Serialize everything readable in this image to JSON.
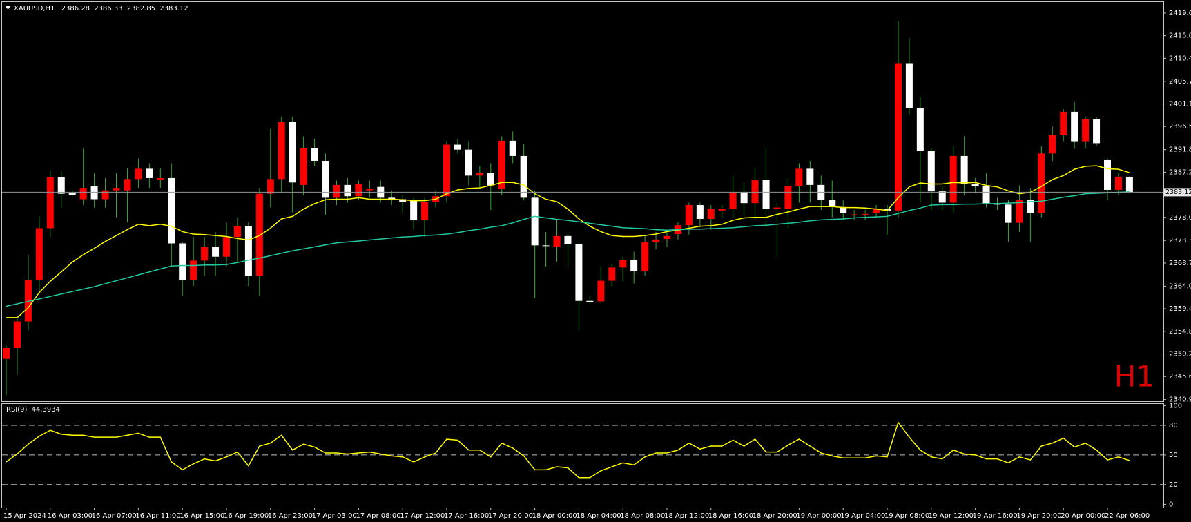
{
  "chart_data": [
    {
      "type": "candlestick",
      "title": "XAUUSD,H1",
      "watermark": "H1",
      "bull_color": "#ff0000",
      "bear_color": "#ffffff",
      "wick_color": "#2fae2f",
      "categories": [
        "15 Apr 2024",
        null,
        null,
        null,
        "16 Apr 03:00",
        null,
        null,
        null,
        "16 Apr 07:00",
        null,
        null,
        null,
        "16 Apr 11:00",
        null,
        null,
        null,
        "16 Apr 15:00",
        null,
        null,
        null,
        "16 Apr 19:00",
        null,
        null,
        null,
        "16 Apr 23:00",
        null,
        null,
        null,
        "17 Apr 03:00",
        null,
        null,
        null,
        "17 Apr 08:00",
        null,
        null,
        null,
        "17 Apr 12:00",
        null,
        null,
        null,
        "17 Apr 16:00",
        null,
        null,
        null,
        "17 Apr 20:00",
        null,
        null,
        null,
        "18 Apr 00:00",
        null,
        null,
        null,
        "18 Apr 04:00",
        null,
        null,
        null,
        "18 Apr 08:00",
        null,
        null,
        null,
        "18 Apr 12:00",
        null,
        null,
        null,
        "18 Apr 16:00",
        null,
        null,
        null,
        "18 Apr 20:00",
        null,
        null,
        null,
        "19 Apr 00:00",
        null,
        null,
        null,
        "19 Apr 04:00",
        null,
        null,
        null,
        "19 Apr 08:00",
        null,
        null,
        null,
        "19 Apr 12:00",
        null,
        null,
        null,
        "19 Apr 16:00",
        null,
        null,
        null,
        "19 Apr 20:00",
        null,
        null,
        null,
        "20 Apr 00:00",
        null,
        null,
        null,
        "22 Apr 06:00",
        null,
        null
      ],
      "open": [
        2349.2,
        2351.4,
        2356.8,
        2365.3,
        2375.8,
        2386.2,
        2382.9,
        2381.7,
        2384.3,
        2381.7,
        2383.5,
        2383.5,
        2385.8,
        2387.9,
        2385.7,
        2386.0,
        2372.7,
        2365.3,
        2369.2,
        2372.0,
        2370.0,
        2374.0,
        2376.2,
        2366.1,
        2382.8,
        2385.8,
        2397.5,
        2384.6,
        2392.1,
        2389.5,
        2382.0,
        2384.6,
        2382.3,
        2383.5,
        2384.2,
        2382.0,
        2381.7,
        2381.5,
        2377.4,
        2381.2,
        2382.3,
        2392.8,
        2391.8,
        2386.5,
        2387.1,
        2383.8,
        2393.6,
        2390.5,
        2382.0,
        2372.3,
        2372.0,
        2374.2,
        2372.6,
        2361.0,
        2360.9,
        2365.1,
        2367.8,
        2369.4,
        2367.0,
        2372.9,
        2373.6,
        2374.6,
        2376.4,
        2380.5,
        2377.7,
        2379.4,
        2379.7,
        2383.1,
        2380.9,
        2385.6,
        2379.7,
        2379.7,
        2384.3,
        2387.9,
        2384.6,
        2381.5,
        2380.1,
        2378.6,
        2378.6,
        2378.9,
        2379.7,
        2379.4,
        2409.4,
        2400.3,
        2391.5,
        2383.3,
        2381.0,
        2390.5,
        2384.8,
        2384.3,
        2380.9,
        2380.6,
        2376.9,
        2381.5,
        2378.9,
        2391.0,
        2394.7,
        2399.5,
        2393.5,
        2398.0,
        2389.7,
        2383.6,
        2386.28
      ],
      "high": [
        2351.9,
        2357.3,
        2370.4,
        2378.2,
        2387.4,
        2387.5,
        2383.5,
        2392.0,
        2387.0,
        2386.0,
        2387.0,
        2388.0,
        2390.0,
        2389.0,
        2388.0,
        2389.0,
        2373.0,
        2374.0,
        2374.0,
        2375.0,
        2377.0,
        2378.0,
        2377.0,
        2384.0,
        2396.0,
        2398.5,
        2398.5,
        2394.5,
        2394.0,
        2391.0,
        2385.5,
        2386.0,
        2385.5,
        2385.5,
        2385.5,
        2383.5,
        2382.5,
        2382.0,
        2382.0,
        2383.5,
        2393.5,
        2394.0,
        2393.5,
        2388.5,
        2389.0,
        2394.5,
        2395.5,
        2393.0,
        2383.5,
        2375.0,
        2377.5,
        2375.0,
        2373.0,
        2362.0,
        2368.0,
        2368.5,
        2370.0,
        2371.0,
        2374.5,
        2375.0,
        2375.5,
        2377.0,
        2381.0,
        2381.0,
        2380.5,
        2380.5,
        2386.5,
        2385.0,
        2388.0,
        2392.0,
        2381.0,
        2386.0,
        2389.0,
        2389.5,
        2386.5,
        2385.5,
        2381.5,
        2379.5,
        2379.5,
        2380.5,
        2380.5,
        2418.0,
        2414.5,
        2402.5,
        2392.0,
        2384.5,
        2392.5,
        2394.5,
        2386.0,
        2387.0,
        2382.0,
        2381.5,
        2384.5,
        2384.0,
        2392.5,
        2396.5,
        2400.0,
        2401.5,
        2398.5,
        2398.5,
        2390.0,
        2387.0,
        2386.33
      ],
      "low": [
        2341.8,
        2346.0,
        2355.0,
        2363.0,
        2374.0,
        2380.0,
        2382.0,
        2380.5,
        2380.0,
        2380.0,
        2378.0,
        2377.0,
        2384.0,
        2384.0,
        2384.0,
        2368.0,
        2362.0,
        2364.0,
        2366.0,
        2366.0,
        2368.0,
        2369.0,
        2364.0,
        2362.0,
        2380.0,
        2383.0,
        2379.0,
        2382.5,
        2388.5,
        2378.5,
        2380.5,
        2381.0,
        2381.5,
        2382.0,
        2381.0,
        2380.5,
        2379.0,
        2375.5,
        2374.0,
        2380.0,
        2381.0,
        2391.0,
        2384.5,
        2384.0,
        2379.5,
        2382.5,
        2389.0,
        2381.5,
        2361.5,
        2368.0,
        2369.0,
        2368.0,
        2355.0,
        2360.5,
        2360.5,
        2364.0,
        2365.0,
        2364.5,
        2366.0,
        2371.5,
        2372.0,
        2373.5,
        2374.5,
        2376.0,
        2375.5,
        2378.0,
        2378.0,
        2378.5,
        2377.5,
        2376.0,
        2370.0,
        2375.5,
        2381.0,
        2381.0,
        2379.5,
        2378.0,
        2377.5,
        2377.5,
        2377.5,
        2378.0,
        2374.5,
        2378.0,
        2399.0,
        2381.0,
        2379.5,
        2379.5,
        2379.0,
        2382.5,
        2383.0,
        2380.0,
        2379.5,
        2373.0,
        2375.0,
        2373.0,
        2378.0,
        2389.5,
        2393.5,
        2392.0,
        2392.0,
        2392.5,
        2381.5,
        2382.5,
        2382.85
      ],
      "close": [
        2351.4,
        2356.8,
        2365.3,
        2375.8,
        2386.2,
        2382.8,
        2382.6,
        2384.0,
        2381.7,
        2383.5,
        2384.0,
        2385.8,
        2387.9,
        2386.0,
        2386.0,
        2372.7,
        2365.3,
        2369.2,
        2372.0,
        2370.0,
        2374.0,
        2376.2,
        2366.1,
        2382.8,
        2385.8,
        2397.5,
        2385.1,
        2392.1,
        2389.5,
        2382.0,
        2384.6,
        2382.3,
        2384.8,
        2383.8,
        2382.0,
        2381.7,
        2381.2,
        2377.4,
        2381.2,
        2382.3,
        2392.8,
        2391.8,
        2386.5,
        2387.1,
        2384.5,
        2393.6,
        2390.5,
        2382.0,
        2372.3,
        2372.2,
        2374.2,
        2372.6,
        2361.0,
        2360.8,
        2365.1,
        2367.8,
        2369.4,
        2367.0,
        2372.9,
        2373.5,
        2374.2,
        2376.4,
        2380.5,
        2377.7,
        2379.7,
        2379.7,
        2383.1,
        2380.9,
        2385.6,
        2379.7,
        2380.0,
        2384.3,
        2387.9,
        2384.6,
        2381.5,
        2380.1,
        2378.9,
        2378.6,
        2378.7,
        2379.7,
        2379.4,
        2409.4,
        2400.3,
        2391.5,
        2383.3,
        2381.0,
        2390.5,
        2384.8,
        2384.3,
        2380.9,
        2380.6,
        2376.9,
        2381.5,
        2378.9,
        2391.0,
        2394.7,
        2399.5,
        2393.5,
        2398.0,
        2393.1,
        2383.6,
        2386.3,
        2383.12
      ],
      "series": [
        {
          "color": "#ffff00",
          "values": [
            2357.6,
            2357.6,
            2359.6,
            2362.7,
            2365.0,
            2366.9,
            2368.9,
            2370.4,
            2371.7,
            2373.1,
            2374.3,
            2375.5,
            2376.6,
            2376.3,
            2376.6,
            2376.2,
            2375.1,
            2374.6,
            2374.5,
            2374.3,
            2374.1,
            2373.7,
            2373.4,
            2374.3,
            2375.8,
            2377.7,
            2378.2,
            2379.7,
            2380.8,
            2381.6,
            2381.7,
            2381.7,
            2382.0,
            2381.7,
            2381.7,
            2381.7,
            2381.6,
            2381.4,
            2381.4,
            2381.7,
            2382.8,
            2383.6,
            2383.9,
            2384.0,
            2384.5,
            2385.1,
            2385.1,
            2384.6,
            2382.8,
            2381.7,
            2381.2,
            2379.7,
            2377.7,
            2376.2,
            2375.1,
            2374.3,
            2374.1,
            2374.1,
            2374.3,
            2374.6,
            2375.1,
            2375.4,
            2375.8,
            2376.2,
            2376.3,
            2376.6,
            2377.4,
            2377.9,
            2378.0,
            2378.0,
            2378.6,
            2379.1,
            2379.7,
            2380.2,
            2380.2,
            2380.2,
            2380.0,
            2380.0,
            2379.9,
            2379.7,
            2379.4,
            2382.0,
            2384.2,
            2385.0,
            2384.8,
            2384.8,
            2385.1,
            2385.0,
            2385.1,
            2384.5,
            2384.2,
            2383.4,
            2382.8,
            2383.1,
            2384.3,
            2385.7,
            2386.5,
            2387.8,
            2388.4,
            2388.5,
            2387.9,
            2387.8,
            2387.1
          ]
        },
        {
          "color": "#22c9a0",
          "values": [
            2359.9,
            2360.4,
            2360.9,
            2361.4,
            2361.9,
            2362.4,
            2362.9,
            2363.4,
            2363.9,
            2364.5,
            2365.1,
            2365.7,
            2366.3,
            2366.9,
            2367.5,
            2368.1,
            2368.2,
            2368.2,
            2368.3,
            2368.3,
            2368.4,
            2368.8,
            2369.3,
            2369.7,
            2370.2,
            2370.7,
            2371.2,
            2371.6,
            2372.0,
            2372.4,
            2372.8,
            2373.0,
            2373.2,
            2373.4,
            2373.6,
            2373.8,
            2374.0,
            2374.1,
            2374.3,
            2374.4,
            2374.6,
            2374.9,
            2375.3,
            2375.6,
            2376.0,
            2376.3,
            2376.9,
            2377.6,
            2378.2,
            2377.9,
            2377.6,
            2377.4,
            2377.1,
            2376.8,
            2376.5,
            2376.2,
            2375.9,
            2375.8,
            2375.7,
            2375.5,
            2375.4,
            2375.5,
            2375.6,
            2375.6,
            2375.7,
            2375.8,
            2375.9,
            2376.1,
            2376.3,
            2376.4,
            2376.6,
            2376.8,
            2377.0,
            2377.3,
            2377.5,
            2377.6,
            2377.7,
            2377.9,
            2378.0,
            2378.1,
            2378.2,
            2378.8,
            2379.4,
            2379.9,
            2380.5,
            2380.6,
            2380.6,
            2380.7,
            2380.7,
            2380.8,
            2380.8,
            2380.9,
            2381.0,
            2381.2,
            2381.3,
            2381.7,
            2382.1,
            2382.4,
            2382.8,
            2382.9,
            2383.0,
            2383.1,
            2383.2
          ]
        }
      ],
      "ylim": [
        2340.6,
        2421.8
      ],
      "yticks": [
        {
          "value": 2419.6,
          "label": "2419.60"
        },
        {
          "value": 2415.0,
          "label": "2415.00"
        },
        {
          "value": 2410.4,
          "label": "2410.40"
        },
        {
          "value": 2405.7,
          "label": "2405.70"
        },
        {
          "value": 2401.1,
          "label": "2401.10"
        },
        {
          "value": 2396.5,
          "label": "2396.50"
        },
        {
          "value": 2391.8,
          "label": "2391.80"
        },
        {
          "value": 2387.2,
          "label": "2387.20"
        },
        {
          "value": 2378.0,
          "label": "2378.00"
        },
        {
          "value": 2373.3,
          "label": "2373.30"
        },
        {
          "value": 2368.7,
          "label": "2368.70"
        },
        {
          "value": 2364.0,
          "label": "2364.00"
        },
        {
          "value": 2359.4,
          "label": "2359.40"
        },
        {
          "value": 2354.8,
          "label": "2354.80"
        },
        {
          "value": 2350.2,
          "label": "2350.20"
        },
        {
          "value": 2345.6,
          "label": "2345.60"
        },
        {
          "value": 2340.9,
          "label": "2340.90"
        }
      ]
    },
    {
      "type": "line",
      "title": "RSI(9)",
      "color": "#ffff00",
      "values": [
        43,
        51,
        61,
        69,
        75,
        71,
        70,
        70,
        68,
        68,
        68,
        70,
        72,
        68,
        68,
        43,
        35,
        41,
        46,
        44,
        48,
        53,
        39,
        59,
        62,
        70,
        55,
        61,
        58,
        52,
        52,
        51,
        52,
        53,
        51,
        49,
        48,
        43,
        48,
        52,
        66,
        65,
        55,
        55,
        48,
        62,
        57,
        49,
        35,
        35,
        38,
        37,
        27,
        27,
        34,
        38,
        42,
        40,
        48,
        52,
        52,
        55,
        62,
        56,
        59,
        59,
        65,
        59,
        66,
        53,
        53,
        60,
        66,
        59,
        52,
        49,
        47,
        47,
        47,
        49,
        48,
        83,
        68,
        55,
        48,
        46,
        55,
        51,
        50,
        46,
        46,
        42,
        48,
        45,
        59,
        62,
        67,
        58,
        62,
        55,
        45,
        48,
        44.3934
      ],
      "ylim": [
        0,
        100
      ],
      "yticks": [
        100,
        80,
        50,
        20,
        0
      ]
    }
  ]
}
